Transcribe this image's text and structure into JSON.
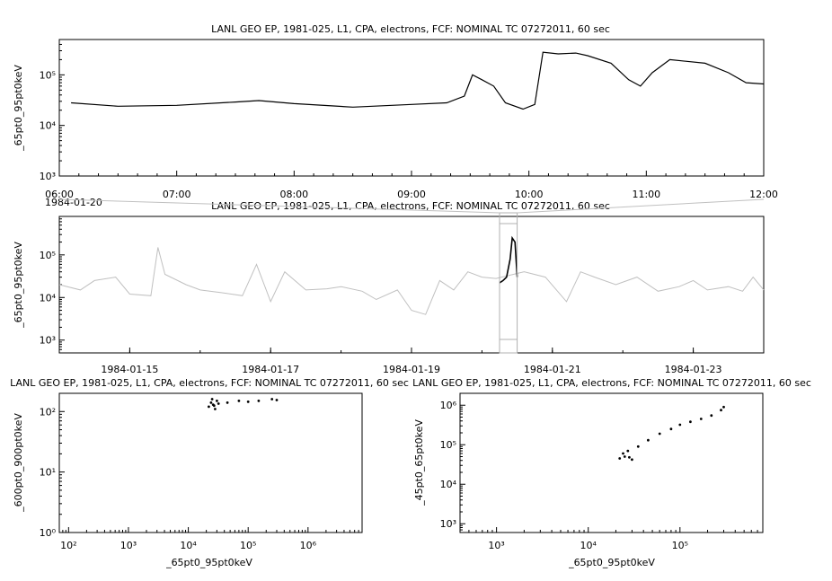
{
  "chart_data": [
    {
      "id": "top",
      "type": "line",
      "title": "LANL GEO EP, 1981-025, L1, CPA, electrons, FCF: NOMINAL TC 07272011, 60 sec",
      "ylabel": "_65pt0_95pt0keV",
      "xlabel": "",
      "y_scale": "log",
      "ylim": [
        1000,
        500000
      ],
      "x_ticks": [
        "06:00",
        "07:00",
        "08:00",
        "09:00",
        "10:00",
        "11:00",
        "12:00"
      ],
      "x_date_label": "1984-01-20",
      "x_range_hours": [
        6,
        12
      ],
      "y_ticks": [
        1000,
        10000,
        100000
      ],
      "series": [
        {
          "color": "#000000",
          "x": [
            6.1,
            6.5,
            7.0,
            7.5,
            7.7,
            8.0,
            8.5,
            9.0,
            9.3,
            9.45,
            9.52,
            9.6,
            9.7,
            9.8,
            9.95,
            10.05,
            10.12,
            10.25,
            10.4,
            10.5,
            10.7,
            10.85,
            10.95,
            11.05,
            11.2,
            11.5,
            11.7,
            11.85,
            12.0
          ],
          "y": [
            28000,
            24000,
            25000,
            29000,
            31000,
            27000,
            23000,
            26000,
            28000,
            38000,
            100000,
            80000,
            60000,
            28000,
            21000,
            26000,
            280000,
            260000,
            270000,
            240000,
            170000,
            80000,
            60000,
            110000,
            200000,
            170000,
            110000,
            70000,
            66000
          ]
        }
      ]
    },
    {
      "id": "middle",
      "type": "line",
      "title": "LANL GEO EP, 1981-025, L1, CPA, electrons, FCF: NOMINAL TC 07272011, 60 sec",
      "ylabel": "_65pt0_95pt0keV",
      "xlabel": "",
      "y_scale": "log",
      "ylim": [
        500,
        800000
      ],
      "x_ticks": [
        "1984-01-15",
        "1984-01-17",
        "1984-01-19",
        "1984-01-21",
        "1984-01-23"
      ],
      "x_range_days": [
        14.0,
        24.0
      ],
      "y_ticks": [
        1000,
        10000,
        100000
      ],
      "highlight_range_days": [
        20.25,
        20.5
      ],
      "series": [
        {
          "color": "#c0c0c0",
          "x": [
            14.0,
            14.3,
            14.5,
            14.8,
            15.0,
            15.3,
            15.4,
            15.5,
            15.8,
            16.0,
            16.3,
            16.6,
            16.8,
            17.0,
            17.2,
            17.5,
            17.8,
            18.0,
            18.3,
            18.5,
            18.8,
            19.0,
            19.2,
            19.4,
            19.6,
            19.8,
            20.0,
            20.2,
            20.6,
            20.9,
            21.2,
            21.4,
            21.6,
            21.9,
            22.2,
            22.5,
            22.8,
            23.0,
            23.2,
            23.5,
            23.7,
            23.85,
            24.0
          ],
          "y": [
            20000,
            15000,
            25000,
            30000,
            12000,
            11000,
            150000,
            35000,
            20000,
            15000,
            13000,
            11000,
            60000,
            8000,
            40000,
            15000,
            16000,
            18000,
            14000,
            9000,
            15000,
            5000,
            4000,
            25000,
            15000,
            40000,
            30000,
            28000,
            40000,
            30000,
            8000,
            40000,
            30000,
            20000,
            30000,
            14000,
            18000,
            25000,
            15000,
            18000,
            14000,
            30000,
            15000
          ]
        },
        {
          "color": "#000000",
          "x": [
            20.25,
            20.3,
            20.35,
            20.4,
            20.43,
            20.47,
            20.5
          ],
          "y": [
            22000,
            25000,
            30000,
            80000,
            250000,
            200000,
            30000
          ]
        }
      ]
    },
    {
      "id": "bottom-left",
      "type": "scatter",
      "title": "LANL GEO EP, 1981-025, L1, CPA, electrons, FCF: NOMINAL TC 07272011, 60 sec",
      "xlabel": "_65pt0_95pt0keV",
      "ylabel": "_600pt0_900pt0keV",
      "x_scale": "log",
      "y_scale": "log",
      "xlim": [
        70,
        8000000
      ],
      "ylim": [
        1,
        200
      ],
      "x_ticks": [
        100,
        1000,
        10000,
        100000,
        1000000
      ],
      "y_ticks": [
        1,
        10,
        100
      ],
      "x": [
        22000,
        24000,
        26000,
        28000,
        30000,
        25000,
        27000,
        32000,
        45000,
        70000,
        100000,
        150000,
        250000,
        300000
      ],
      "y": [
        120,
        140,
        130,
        110,
        150,
        160,
        125,
        135,
        140,
        150,
        145,
        150,
        160,
        155
      ]
    },
    {
      "id": "bottom-right",
      "type": "scatter",
      "title": "LANL GEO EP, 1981-025, L1, CPA, electrons, FCF: NOMINAL TC 07272011, 60 sec",
      "xlabel": "_65pt0_95pt0keV",
      "ylabel": "_45pt0_65pt0keV",
      "x_scale": "log",
      "y_scale": "log",
      "xlim": [
        400,
        800000
      ],
      "ylim": [
        600,
        2000000
      ],
      "x_ticks": [
        1000,
        10000,
        100000
      ],
      "y_ticks": [
        1000,
        10000,
        100000,
        1000000
      ],
      "x": [
        22000,
        25000,
        28000,
        30000,
        24000,
        27000,
        35000,
        45000,
        60000,
        80000,
        100000,
        130000,
        170000,
        220000,
        280000,
        300000
      ],
      "y": [
        45000,
        50000,
        48000,
        42000,
        60000,
        70000,
        90000,
        130000,
        190000,
        250000,
        320000,
        380000,
        450000,
        550000,
        750000,
        900000
      ]
    }
  ]
}
